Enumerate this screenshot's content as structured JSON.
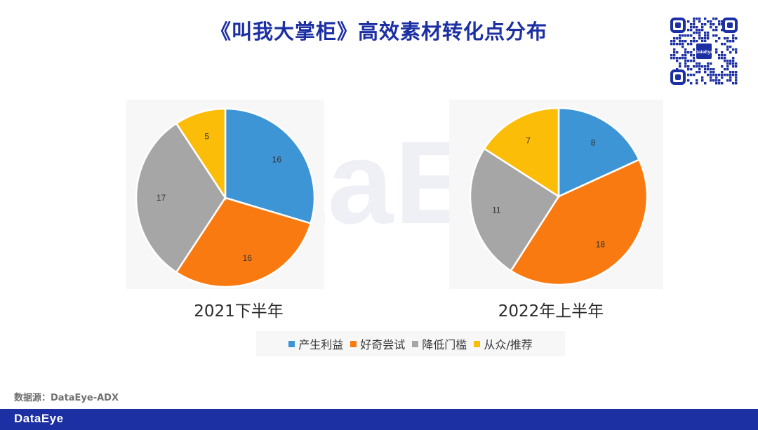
{
  "header": {
    "title": "《叫我大掌柜》高效素材转化点分布"
  },
  "watermark": "DataEye",
  "qr_logo_text": "DataEye",
  "chart_data": [
    {
      "type": "pie",
      "title": "2021下半年",
      "categories": [
        "产生利益",
        "好奇尝试",
        "降低门槛",
        "从众/推荐"
      ],
      "values": [
        16,
        16,
        17,
        5
      ],
      "colors": [
        "#3d95d6",
        "#fa7a12",
        "#a6a6a6",
        "#fcbd09"
      ]
    },
    {
      "type": "pie",
      "title": "2022年上半年",
      "categories": [
        "产生利益",
        "好奇尝试",
        "降低门槛",
        "从众/推荐"
      ],
      "values": [
        8,
        18,
        11,
        7
      ],
      "colors": [
        "#3d95d6",
        "#fa7a12",
        "#a6a6a6",
        "#fcbd09"
      ]
    }
  ],
  "legend": {
    "items": [
      {
        "label": "产生利益",
        "color": "#3d95d6"
      },
      {
        "label": "好奇尝试",
        "color": "#fa7a12"
      },
      {
        "label": "降低门槛",
        "color": "#a6a6a6"
      },
      {
        "label": "从众/推荐",
        "color": "#fcbd09"
      }
    ]
  },
  "source": "数据源：DataEye-ADX",
  "footer": {
    "logo": "DataEye",
    "background": "#1c2fa3"
  }
}
